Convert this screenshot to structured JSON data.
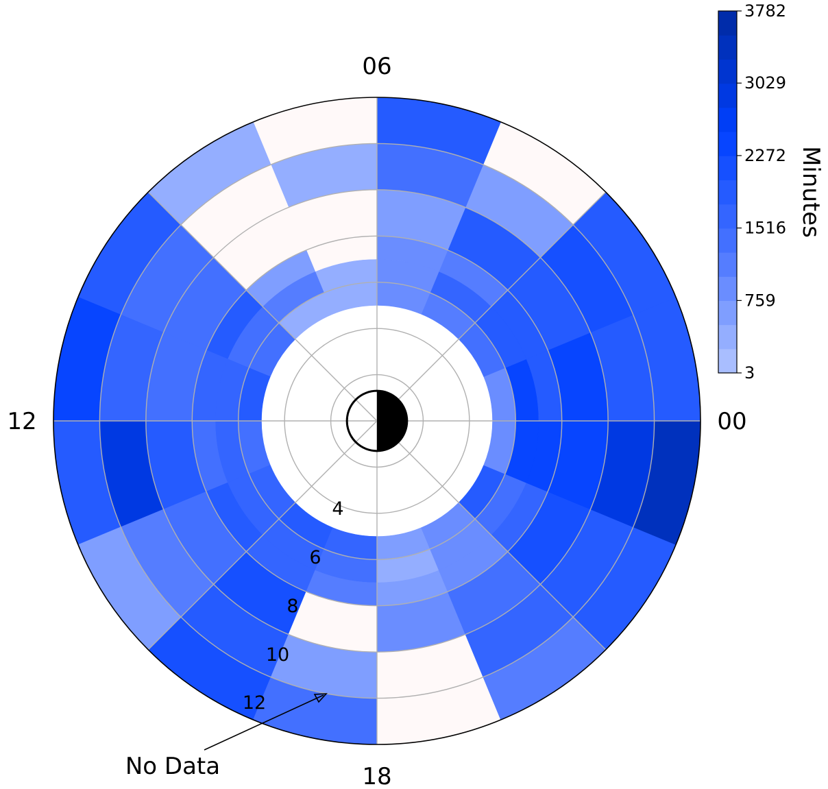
{
  "chart_data": {
    "type": "heatmap",
    "projection": "polar (magnetic local time vs. radial distance)",
    "title": "",
    "angular_tick_labels": [
      "00",
      "06",
      "12",
      "18"
    ],
    "radial_tick_labels": [
      "4",
      "6",
      "8",
      "10",
      "12"
    ],
    "radial_range": [
      2,
      14
    ],
    "grid": true,
    "colorbar": {
      "label": "Minutes",
      "ticks": [
        "3",
        "759",
        "1516",
        "2272",
        "3029",
        "3782"
      ],
      "range": [
        3,
        3782
      ],
      "levels": 15,
      "low_color": "#b3c6ff",
      "high_color": "#002aa0",
      "no_data_color": "#fff9f9"
    },
    "annotation": "No Data",
    "bin_structure": {
      "mlt_bin_hours": 1.5,
      "ring_edges": [
        5,
        6,
        7,
        8,
        10,
        12,
        14
      ],
      "mlt_starts_hours": [
        0,
        1.5,
        3,
        4.5,
        6,
        7.5,
        9,
        10.5,
        12,
        13.5,
        15,
        16.5,
        18,
        19.5,
        21,
        22.5
      ]
    },
    "values_minutes_by_ring": [
      [
        1000,
        1300,
        1100,
        800,
        400,
        500,
        1500,
        1800,
        1500,
        1600,
        1900,
        1700,
        700,
        800,
        2000,
        1000
      ],
      [
        2300,
        2000,
        1600,
        1000,
        400,
        1100,
        1300,
        1600,
        1700,
        1600,
        1600,
        1500,
        500,
        1000,
        1300,
        2500
      ],
      [
        1800,
        1800,
        1100,
        800,
        0,
        700,
        1800,
        1600,
        1500,
        1900,
        1700,
        1100,
        700,
        1000,
        1600,
        2400
      ],
      [
        2500,
        2000,
        1800,
        700,
        0,
        0,
        1300,
        1500,
        1800,
        1300,
        2100,
        0,
        900,
        1400,
        2200,
        2500
      ],
      [
        2000,
        2100,
        600,
        1400,
        500,
        0,
        1300,
        1700,
        3000,
        1200,
        2000,
        600,
        0,
        1700,
        2000,
        2900
      ],
      [
        1800,
        2000,
        0,
        1900,
        0,
        500,
        2000,
        2300,
        1800,
        600,
        2200,
        1400,
        0,
        1200,
        1900,
        3300
      ]
    ]
  }
}
